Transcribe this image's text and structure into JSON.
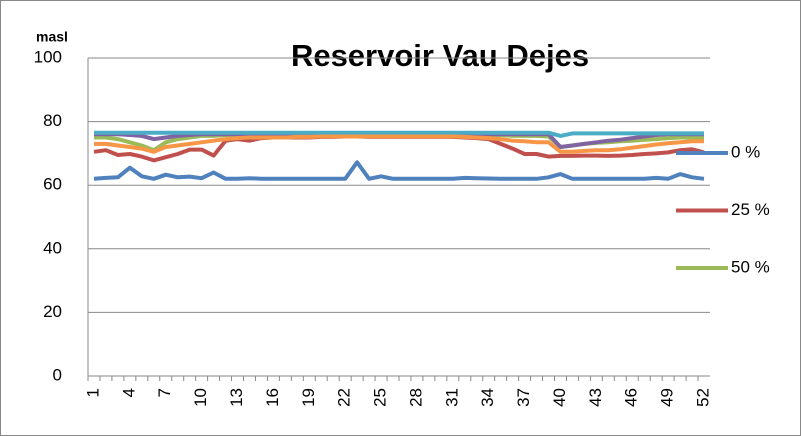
{
  "chart_data": {
    "type": "line",
    "title": "Reservoir Vau Dejes",
    "y_label": "masl",
    "categories": [
      "1",
      null,
      null,
      "4",
      null,
      null,
      "7",
      null,
      null,
      "10",
      null,
      null,
      "13",
      null,
      null,
      "16",
      null,
      null,
      "19",
      null,
      null,
      "22",
      null,
      null,
      "25",
      null,
      null,
      "28",
      null,
      null,
      "31",
      null,
      null,
      "34",
      null,
      null,
      "37",
      null,
      null,
      "40",
      null,
      null,
      "43",
      null,
      null,
      "46",
      null,
      null,
      "49",
      null,
      null,
      "52"
    ],
    "ylim": [
      0,
      100
    ],
    "yticks": [
      0,
      20,
      40,
      60,
      80,
      100
    ],
    "grid": true,
    "series": [
      {
        "name": "0 %",
        "color": "#4f81bd",
        "values": [
          62,
          62.3,
          62.5,
          65.5,
          62.8,
          62,
          63.3,
          62.5,
          62.7,
          62.2,
          64,
          62,
          62,
          62.2,
          62,
          62,
          62,
          62,
          62,
          62,
          62,
          62,
          67.2,
          62,
          62.8,
          62,
          62,
          62,
          62,
          62,
          62,
          62.3,
          62.2,
          62.1,
          62,
          62,
          62,
          62,
          62.5,
          63.5,
          62,
          62,
          62,
          62,
          62,
          62,
          62,
          62.3,
          62,
          63.5,
          62.5,
          62
        ]
      },
      {
        "name": "25 %",
        "color": "#c0504d",
        "values": [
          70.5,
          71,
          69.5,
          69.8,
          69,
          67.8,
          68.8,
          69.8,
          71.2,
          71.2,
          69.3,
          74,
          74.5,
          74,
          74.8,
          75,
          75,
          75,
          75,
          75.2,
          75.2,
          75.3,
          75.3,
          75.2,
          75.2,
          75.2,
          75.2,
          75.2,
          75.2,
          75.2,
          75.2,
          75,
          74.8,
          74.5,
          73,
          71.5,
          69.8,
          69.8,
          69,
          69.2,
          69.2,
          69.3,
          69.3,
          69.2,
          69.3,
          69.5,
          69.8,
          70,
          70.3,
          71,
          71.3,
          70.3
        ]
      },
      {
        "name": "50 %",
        "color": "#9bbb59",
        "values": [
          75,
          75,
          74.5,
          73.5,
          72.5,
          71,
          73.5,
          74.5,
          75,
          75.5,
          75.5,
          75.8,
          75.8,
          75.8,
          75.8,
          75.8,
          75.8,
          75.8,
          75.8,
          75.8,
          75.8,
          75.8,
          75.8,
          75.8,
          75.8,
          75.8,
          75.8,
          75.8,
          75.8,
          75.8,
          75.8,
          75.8,
          75.8,
          75.8,
          75.8,
          75.5,
          75.5,
          75.5,
          75.3,
          72,
          72.5,
          73,
          73.3,
          73.5,
          73.8,
          74,
          74.3,
          74.5,
          74.8,
          75,
          75,
          75
        ]
      },
      {
        "color": "#8064a2",
        "values": [
          76,
          76,
          76,
          75.8,
          75.5,
          74.5,
          75,
          75.5,
          75.8,
          76,
          76,
          76,
          76,
          76,
          76,
          76,
          76,
          76,
          76,
          76,
          76,
          76,
          76,
          76,
          76,
          76,
          76,
          76,
          76,
          76,
          76,
          76,
          76,
          76,
          76,
          76,
          76,
          76,
          76,
          72,
          72.5,
          73,
          73.5,
          74,
          74.3,
          74.8,
          75.3,
          75.8,
          76,
          76,
          76,
          76
        ]
      },
      {
        "color": "#4bacc6",
        "values": [
          76.5,
          76.5,
          76.5,
          76.5,
          76.5,
          76.5,
          76.5,
          76.5,
          76.5,
          76.5,
          76.5,
          76.5,
          76.5,
          76.5,
          76.5,
          76.5,
          76.5,
          76.5,
          76.5,
          76.5,
          76.5,
          76.5,
          76.5,
          76.5,
          76.5,
          76.5,
          76.5,
          76.5,
          76.5,
          76.5,
          76.5,
          76.5,
          76.5,
          76.5,
          76.5,
          76.5,
          76.5,
          76.5,
          76.5,
          75.5,
          76.3,
          76.3,
          76.3,
          76.3,
          76.3,
          76.3,
          76.3,
          76.3,
          76.3,
          76.3,
          76.3,
          76.3
        ]
      },
      {
        "color": "#f79646",
        "values": [
          73,
          73,
          72.5,
          72,
          71.5,
          70.5,
          72,
          72.5,
          73,
          73.5,
          74,
          74.5,
          74.8,
          75,
          75,
          75,
          75,
          75.2,
          75.2,
          75.3,
          75.3,
          75.3,
          75.3,
          75.3,
          75.3,
          75.3,
          75.3,
          75.3,
          75.3,
          75.3,
          75.3,
          75.2,
          75,
          74.8,
          74.5,
          74,
          73.8,
          73.5,
          73.5,
          70.5,
          70.5,
          70.8,
          71,
          71,
          71.3,
          71.8,
          72.3,
          72.8,
          73.2,
          73.5,
          73.8,
          73.8
        ]
      }
    ]
  }
}
